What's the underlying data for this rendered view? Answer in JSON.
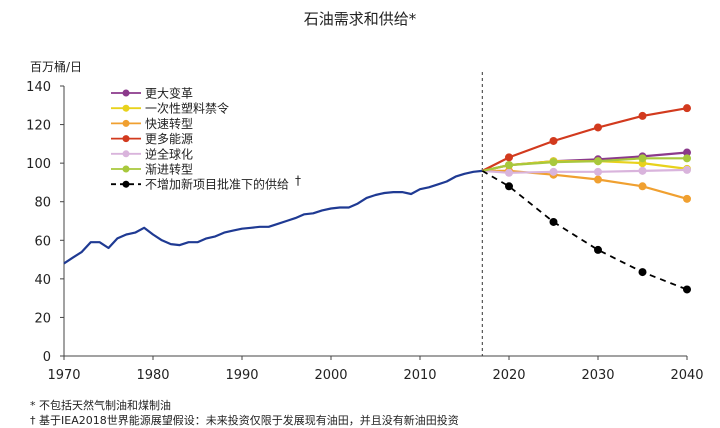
{
  "chart_data": {
    "type": "line",
    "title": "石油需求和供给*",
    "ylabel": "百万桶/日",
    "xlabel": "",
    "xlim": [
      1970,
      2040
    ],
    "ylim": [
      0,
      140
    ],
    "x_ticks": [
      1970,
      1980,
      1990,
      2000,
      2010,
      2020,
      2030,
      2040
    ],
    "y_ticks": [
      0,
      20,
      40,
      60,
      80,
      100,
      120,
      140
    ],
    "projection_start": 2017,
    "grid": false,
    "legend_position": "top-left",
    "historical": {
      "name": "history",
      "color": "#1f3a93",
      "points": [
        [
          1970,
          48
        ],
        [
          1971,
          51
        ],
        [
          1972,
          54
        ],
        [
          1973,
          59
        ],
        [
          1974,
          59
        ],
        [
          1975,
          56
        ],
        [
          1976,
          61
        ],
        [
          1977,
          63
        ],
        [
          1978,
          64
        ],
        [
          1979,
          66.5
        ],
        [
          1980,
          63
        ],
        [
          1981,
          60
        ],
        [
          1982,
          58
        ],
        [
          1983,
          57.5
        ],
        [
          1984,
          59
        ],
        [
          1985,
          59
        ],
        [
          1986,
          61
        ],
        [
          1987,
          62
        ],
        [
          1988,
          64
        ],
        [
          1989,
          65
        ],
        [
          1990,
          66
        ],
        [
          1991,
          66.5
        ],
        [
          1992,
          67
        ],
        [
          1993,
          67
        ],
        [
          1994,
          68.5
        ],
        [
          1995,
          70
        ],
        [
          1996,
          71.5
        ],
        [
          1997,
          73.5
        ],
        [
          1998,
          74
        ],
        [
          1999,
          75.5
        ],
        [
          2000,
          76.5
        ],
        [
          2001,
          77
        ],
        [
          2002,
          77
        ],
        [
          2003,
          79
        ],
        [
          2004,
          82
        ],
        [
          2005,
          83.5
        ],
        [
          2006,
          84.5
        ],
        [
          2007,
          85
        ],
        [
          2008,
          85
        ],
        [
          2009,
          84
        ],
        [
          2010,
          86.5
        ],
        [
          2011,
          87.5
        ],
        [
          2012,
          89
        ],
        [
          2013,
          90.5
        ],
        [
          2014,
          93
        ],
        [
          2015,
          94.5
        ],
        [
          2016,
          95.5
        ],
        [
          2017,
          96
        ]
      ]
    },
    "series": [
      {
        "name": "更大变革",
        "color": "#8b3a8b",
        "style": "solid",
        "x": [
          2017,
          2020,
          2025,
          2030,
          2035,
          2040
        ],
        "values": [
          96,
          99,
          101,
          102,
          103.5,
          105.5
        ]
      },
      {
        "name": "一次性塑料禁令",
        "color": "#e8d21c",
        "style": "solid",
        "x": [
          2017,
          2020,
          2025,
          2030,
          2035,
          2040
        ],
        "values": [
          96,
          99,
          101,
          101,
          100,
          97
        ]
      },
      {
        "name": "快速转型",
        "color": "#f0a030",
        "style": "solid",
        "x": [
          2017,
          2020,
          2025,
          2030,
          2035,
          2040
        ],
        "values": [
          96,
          96,
          94,
          91.5,
          88,
          81.5
        ]
      },
      {
        "name": "更多能源",
        "color": "#d23a1e",
        "style": "solid",
        "x": [
          2017,
          2020,
          2025,
          2030,
          2035,
          2040
        ],
        "values": [
          96,
          103,
          111.5,
          118.5,
          124.5,
          128.5
        ]
      },
      {
        "name": "逆全球化",
        "color": "#d9b4dc",
        "style": "solid",
        "x": [
          2017,
          2020,
          2025,
          2030,
          2035,
          2040
        ],
        "values": [
          96,
          95,
          95.5,
          95.5,
          96,
          96.5
        ]
      },
      {
        "name": "渐进转型",
        "color": "#a8c83c",
        "style": "solid",
        "x": [
          2017,
          2020,
          2025,
          2030,
          2035,
          2040
        ],
        "values": [
          96,
          99,
          100.5,
          101,
          102.5,
          102.5
        ]
      },
      {
        "name": "不增加新项目批准下的供给",
        "color": "#000000",
        "style": "dashed",
        "x": [
          2017,
          2020,
          2025,
          2030,
          2035,
          2040
        ],
        "values": [
          96,
          88,
          69.5,
          55,
          43.5,
          34.5
        ]
      }
    ],
    "legend_dagger": "†"
  },
  "footnotes": [
    "* 不包括天然气制油和煤制油",
    "† 基于IEA2018世界能源展望假设：未来投资仅限于发展现有油田，并且没有新油田投资"
  ]
}
